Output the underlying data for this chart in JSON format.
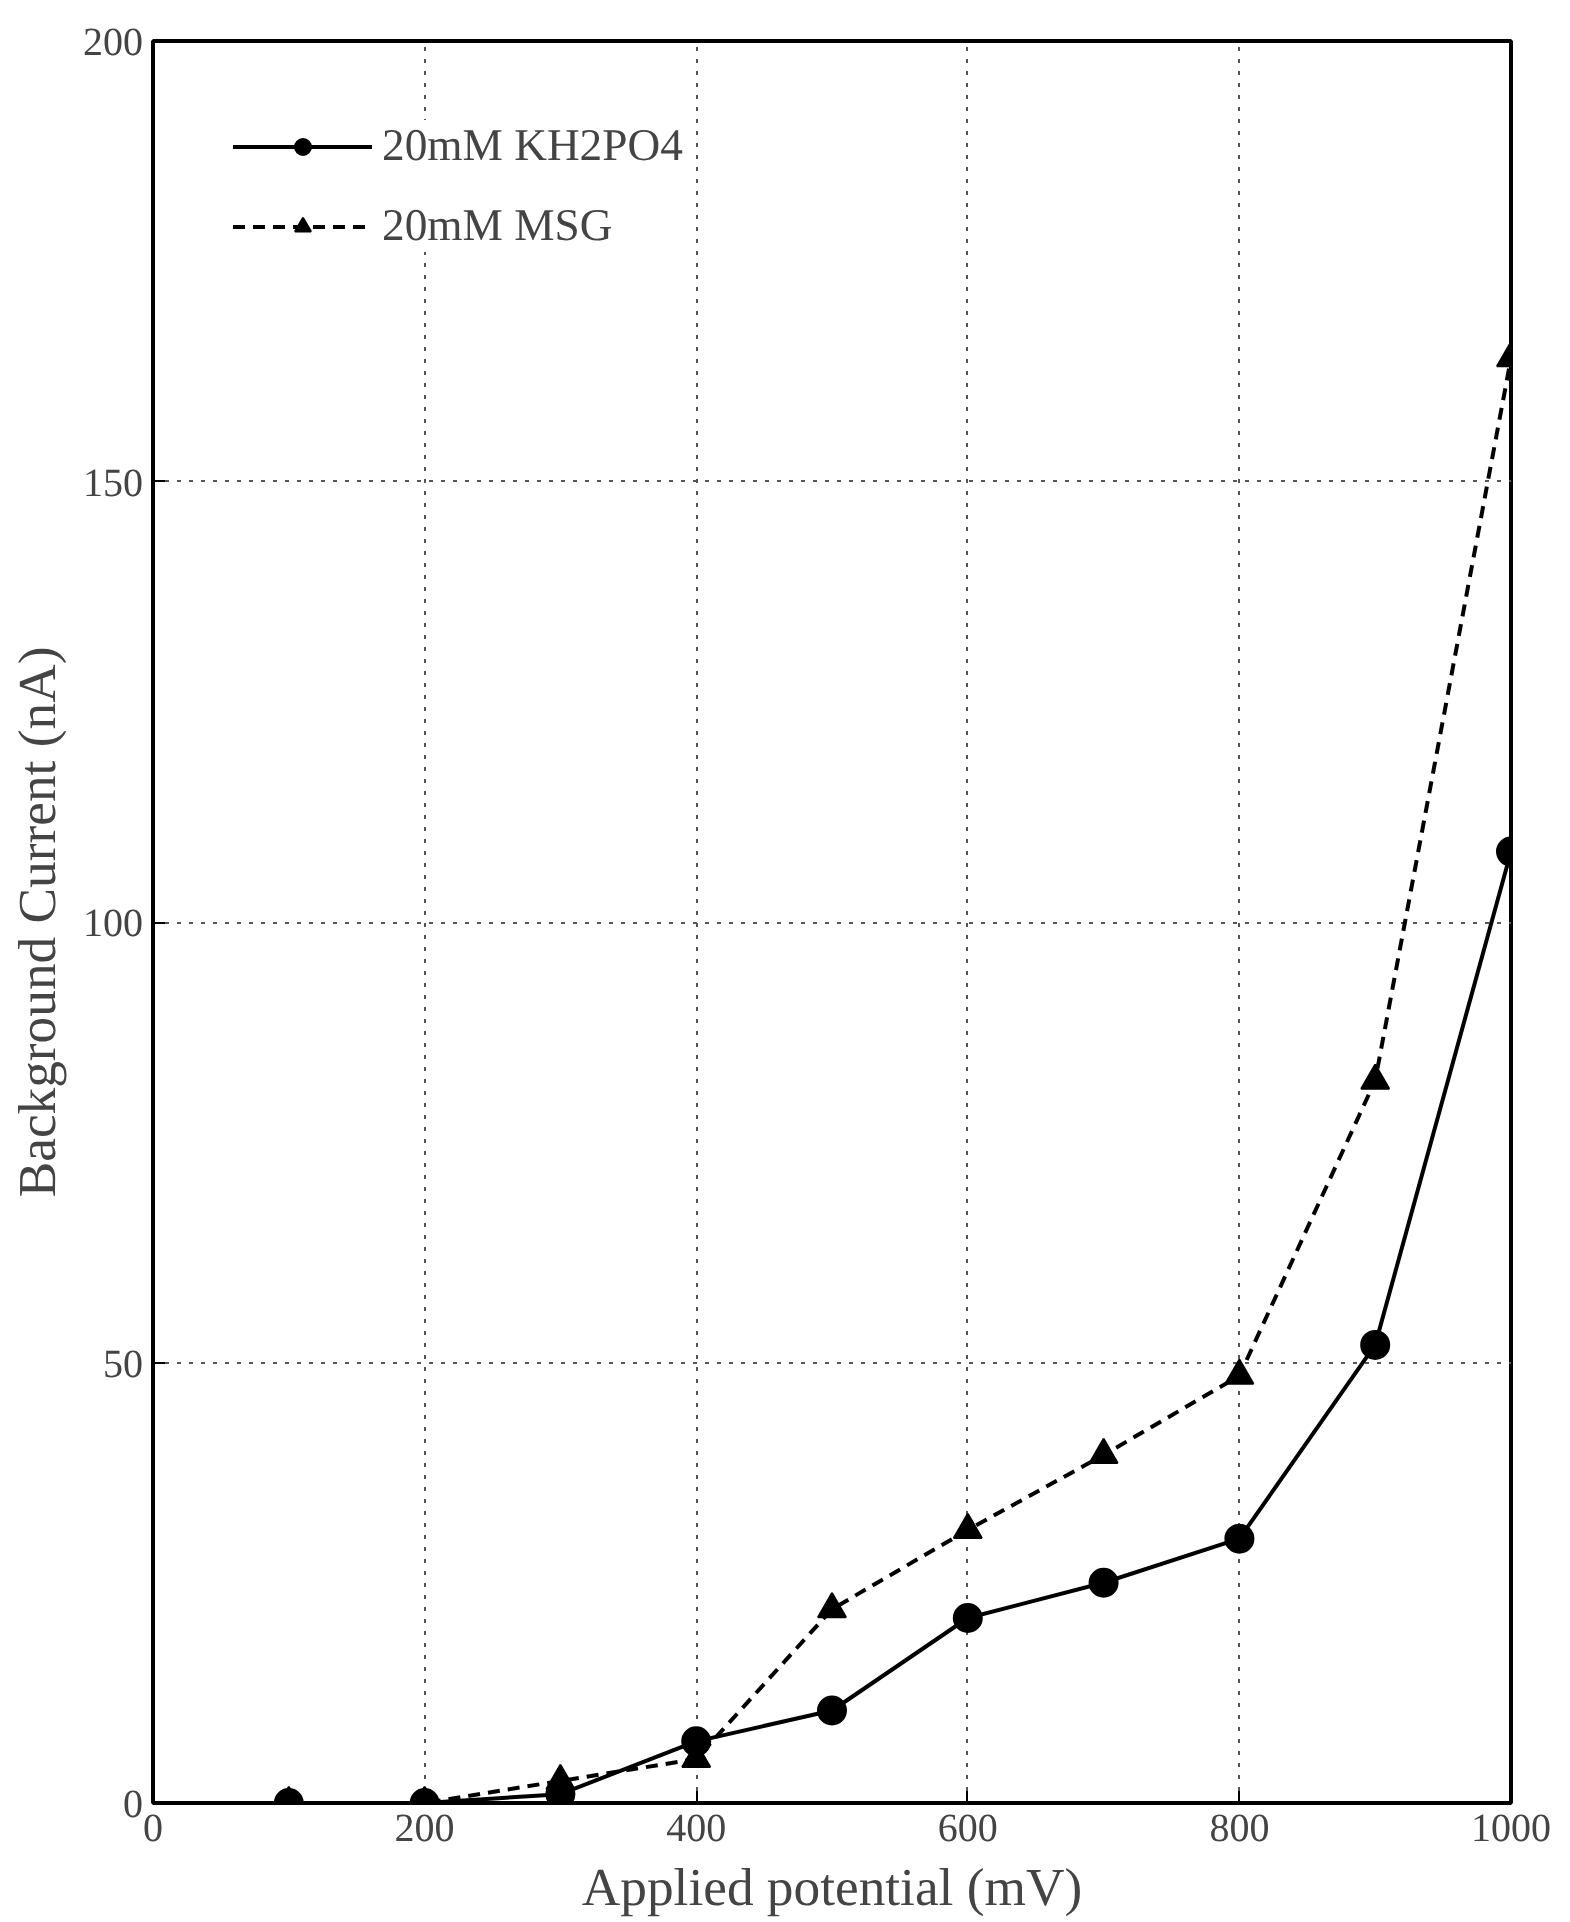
{
  "chart_data": {
    "type": "line",
    "xlabel": "Applied potential (mV)",
    "ylabel": "Background Current (nA)",
    "x": [
      100,
      200,
      300,
      400,
      500,
      600,
      700,
      800,
      900,
      1000
    ],
    "series": [
      {
        "name": "20mM KH2PO4",
        "color": "#000000",
        "marker": "circle",
        "line_style": "solid",
        "values": [
          0,
          0,
          1,
          7,
          10.5,
          21,
          25,
          30,
          52,
          108
        ]
      },
      {
        "name": "20mM MSG",
        "color": "#000000",
        "marker": "triangle",
        "line_style": "dashed",
        "values": [
          0,
          0,
          2.5,
          5,
          22,
          31,
          39.5,
          48.5,
          82,
          164
        ]
      }
    ],
    "xlim": [
      0,
      1000
    ],
    "ylim": [
      0,
      200
    ],
    "xticks": [
      0,
      200,
      400,
      600,
      800,
      1000
    ],
    "yticks": [
      0,
      50,
      100,
      150,
      200
    ],
    "grid": true,
    "legend": "top left"
  }
}
